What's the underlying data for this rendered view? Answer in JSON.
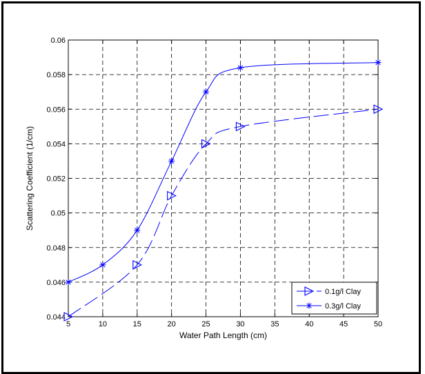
{
  "chart_data": {
    "type": "line",
    "title": "",
    "xlabel": "Water Path Length (cm)",
    "ylabel": "Scattering Coefficient (1/cm)",
    "xlim": [
      5,
      50
    ],
    "ylim": [
      0.044,
      0.06
    ],
    "x_ticks": [
      "5",
      "10",
      "15",
      "20",
      "25",
      "30",
      "35",
      "40",
      "45",
      "50"
    ],
    "y_ticks": [
      "0.044",
      "0.046",
      "0.048",
      "0.05",
      "0.052",
      "0.054",
      "0.056",
      "0.058",
      "0.06"
    ],
    "grid": true,
    "legend_position": "bottom-right",
    "series": [
      {
        "name": "0.1g/l Clay",
        "marker": "triangle-right",
        "line_style": "dashed",
        "color": "#0000ff",
        "x": [
          5,
          15,
          20,
          25,
          30,
          50
        ],
        "y": [
          0.044,
          0.047,
          0.051,
          0.054,
          0.055,
          0.056
        ]
      },
      {
        "name": "0.3g/l Clay",
        "marker": "asterisk",
        "line_style": "solid",
        "color": "#0000ff",
        "x": [
          5,
          10,
          15,
          20,
          25,
          30,
          50
        ],
        "y": [
          0.046,
          0.047,
          0.049,
          0.053,
          0.057,
          0.0584,
          0.0587
        ]
      }
    ]
  }
}
